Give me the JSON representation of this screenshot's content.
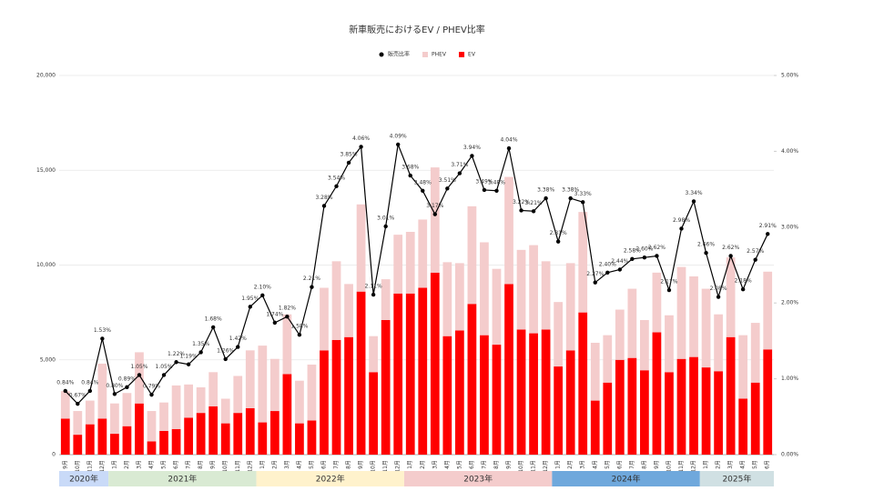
{
  "chart_data": {
    "type": "bar",
    "stacked": true,
    "title": "新車販売におけるEV / PHEV比率",
    "categories": [
      "9月",
      "10月",
      "11月",
      "12月",
      "1月",
      "2月",
      "3月",
      "4月",
      "5月",
      "6月",
      "7月",
      "8月",
      "9月",
      "10月",
      "11月",
      "12月",
      "1月",
      "2月",
      "3月",
      "4月",
      "5月",
      "6月",
      "7月",
      "8月",
      "9月",
      "10月",
      "11月",
      "12月",
      "1月",
      "2月",
      "3月",
      "4月",
      "5月",
      "6月",
      "7月",
      "8月",
      "9月",
      "10月",
      "11月",
      "12月",
      "1月",
      "2月",
      "3月",
      "4月",
      "5月",
      "6月",
      "7月",
      "8月",
      "9月",
      "10月",
      "11月",
      "12月",
      "1月",
      "2月",
      "3月",
      "4月",
      "5月",
      "6月"
    ],
    "year_labels": [
      "2020年",
      "2021年",
      "2022年",
      "2023年",
      "2024年",
      "2025年"
    ],
    "year_colors": [
      "#c9daf8",
      "#d9ead3",
      "#fff2cc",
      "#f4cccc",
      "#6fa8dc",
      "#d0e0e3"
    ],
    "series": [
      {
        "name": "販売比率",
        "type": "line",
        "axis": "y2",
        "color": "#000000",
        "values": [
          0.84,
          0.67,
          0.84,
          1.53,
          0.8,
          0.89,
          1.05,
          0.79,
          1.05,
          1.22,
          1.19,
          1.35,
          1.68,
          1.26,
          1.42,
          1.95,
          2.1,
          1.74,
          1.82,
          1.58,
          2.21,
          3.28,
          3.54,
          3.85,
          4.06,
          2.11,
          3.01,
          4.09,
          3.68,
          3.48,
          3.17,
          3.51,
          3.71,
          3.94,
          3.49,
          3.48,
          4.04,
          3.22,
          3.21,
          3.38,
          2.81,
          3.38,
          3.33,
          2.27,
          2.4,
          2.44,
          2.58,
          2.6,
          2.62,
          2.17,
          2.98,
          3.34,
          2.66,
          2.08,
          2.62,
          2.18,
          2.57,
          2.91
        ],
        "value_labels": [
          "0.84%",
          "0.67%",
          "0.84%",
          "1.53%",
          "0.80%",
          "0.89%",
          "1.05%",
          "0.79%",
          "1.05%",
          "1.22%",
          "1.19%",
          "1.35%",
          "1.68%",
          "1.26%",
          "1.42%",
          "1.95%",
          "2.10%",
          "1.74%",
          "1.82%",
          "1.58%",
          "2.21%",
          "3.28%",
          "3.54%",
          "3.85%",
          "4.06%",
          "2.11%",
          "3.01%",
          "4.09%",
          "3.68%",
          "3.48%",
          "3.17%",
          "3.51%",
          "3.71%",
          "3.94%",
          "3.49%",
          "3.48%",
          "4.04%",
          "3.22%",
          "3.21%",
          "3.38%",
          "2.81%",
          "3.38%",
          "3.33%",
          "2.27%",
          "2.40%",
          "2.44%",
          "2.58%",
          "2.60%",
          "2.62%",
          "2.17%",
          "2.98%",
          "3.34%",
          "2.66%",
          "2.08%",
          "2.62%",
          "2.18%",
          "2.57%",
          "2.91%"
        ]
      },
      {
        "name": "PHEV",
        "type": "bar",
        "color": "#f4cccc",
        "values": [
          1450,
          1250,
          1250,
          2900,
          1600,
          1750,
          2700,
          1600,
          1500,
          2300,
          1750,
          1350,
          1800,
          1300,
          1950,
          3050,
          4050,
          2750,
          3150,
          2250,
          2950,
          3300,
          4150,
          2800,
          4600,
          1900,
          2150,
          3100,
          3250,
          3600,
          5550,
          3900,
          3550,
          5150,
          4900,
          4000,
          5650,
          4200,
          4650,
          3600,
          3400,
          4600,
          5300,
          3050,
          2500,
          2650,
          3650,
          2650,
          3150,
          3000,
          4850,
          4250,
          4150,
          3000,
          4200,
          3350,
          3150,
          4100
        ]
      },
      {
        "name": "EV",
        "type": "bar",
        "color": "#ff0000",
        "values": [
          1900,
          1050,
          1600,
          1900,
          1100,
          1500,
          2700,
          700,
          1250,
          1350,
          1950,
          2200,
          2550,
          1650,
          2200,
          2450,
          1700,
          2300,
          4250,
          1650,
          1800,
          5500,
          6050,
          6200,
          8600,
          4350,
          7100,
          8500,
          8500,
          8800,
          9600,
          6250,
          6550,
          7950,
          6300,
          5800,
          9000,
          6600,
          6400,
          6600,
          4650,
          5500,
          7500,
          2850,
          3800,
          5000,
          5100,
          4450,
          6450,
          4350,
          5050,
          5150,
          4600,
          4400,
          6200,
          2950,
          3800,
          5550
        ]
      }
    ],
    "ylim": [
      0,
      20000
    ],
    "yticks": [
      0,
      {
        "value": 5000,
        "label": "5,000"
      },
      {
        "value": 10000,
        "label": "10,000"
      },
      {
        "value": 15000,
        "label": "15,000"
      },
      {
        "value": 20000,
        "label": "20,000"
      }
    ],
    "y2lim": [
      0,
      5
    ],
    "y2ticks": [
      {
        "value": 0,
        "label": "0.00%"
      },
      {
        "value": 1,
        "label": "1.00%"
      },
      {
        "value": 2,
        "label": "2.00%"
      },
      {
        "value": 3,
        "label": "3.00%"
      },
      {
        "value": 4,
        "label": "4.00%"
      },
      {
        "value": 5,
        "label": "5.00%"
      }
    ],
    "grid": true,
    "legend": "top"
  }
}
